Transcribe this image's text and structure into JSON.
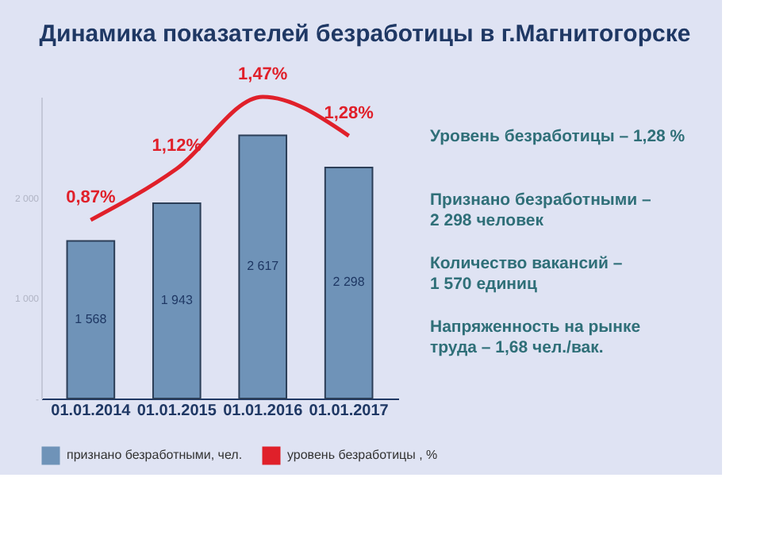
{
  "chart_data": {
    "type": "bar",
    "title": "Динамика показателей безработицы в г.Магнитогорске",
    "categories": [
      "01.01.2014",
      "01.01.2015",
      "01.01.2016",
      "01.01.2017"
    ],
    "series": [
      {
        "name": "признано безработными, чел.",
        "color": "#6f93b8",
        "values": [
          1568,
          1943,
          2617,
          2298
        ],
        "value_labels": [
          "1 568",
          "1 943",
          "2 617",
          "2 298"
        ]
      },
      {
        "name": "уровень безработицы , %",
        "type": "line",
        "axis": "y2",
        "color": "#e0202a",
        "values": [
          0.87,
          1.12,
          1.47,
          1.28
        ],
        "value_labels": [
          "0,87%",
          "1,12%",
          "1,47%",
          "1,28%"
        ]
      }
    ],
    "ylim": [
      0,
      3000
    ],
    "yticks": [
      {
        "value": 0,
        "label": "-"
      },
      {
        "value": 1000,
        "label": "1 000"
      },
      {
        "value": 2000,
        "label": "2 000"
      }
    ],
    "grid": false,
    "legend": "bottom",
    "marker": "none",
    "line_style": "solid",
    "annotations": [
      "Уровень безработицы – 1,28 %",
      "Признано безработными –\n2 298 человек",
      "Количество вакансий –\n1 570 единиц",
      "Напряженность на рынке\nтруда – 1,68 чел./вак."
    ]
  }
}
